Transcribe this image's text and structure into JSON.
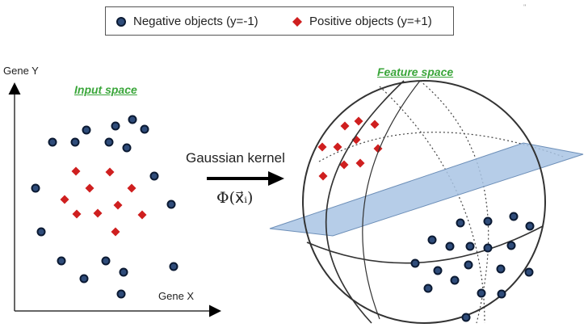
{
  "legend": {
    "negative_label": "Negative objects (y=-1)",
    "positive_label": "Positive objects (y=+1)"
  },
  "input_space": {
    "title": "Input space",
    "y_axis_label": "Gene Y",
    "x_axis_label": "Gene X"
  },
  "feature_space": {
    "title": "Feature space"
  },
  "mapping": {
    "kernel_label": "Gaussian kernel",
    "function_label": "Φ(x⃗ᵢ)"
  },
  "colors": {
    "negative_fill": "#2f4c7a",
    "negative_outline": "#0b1a33",
    "positive_fill": "#cf1f1f",
    "plane_fill": "#a9c4e4",
    "plane_stroke": "#6d8fb8",
    "title_green": "#3aa63a",
    "line": "#333333"
  }
}
